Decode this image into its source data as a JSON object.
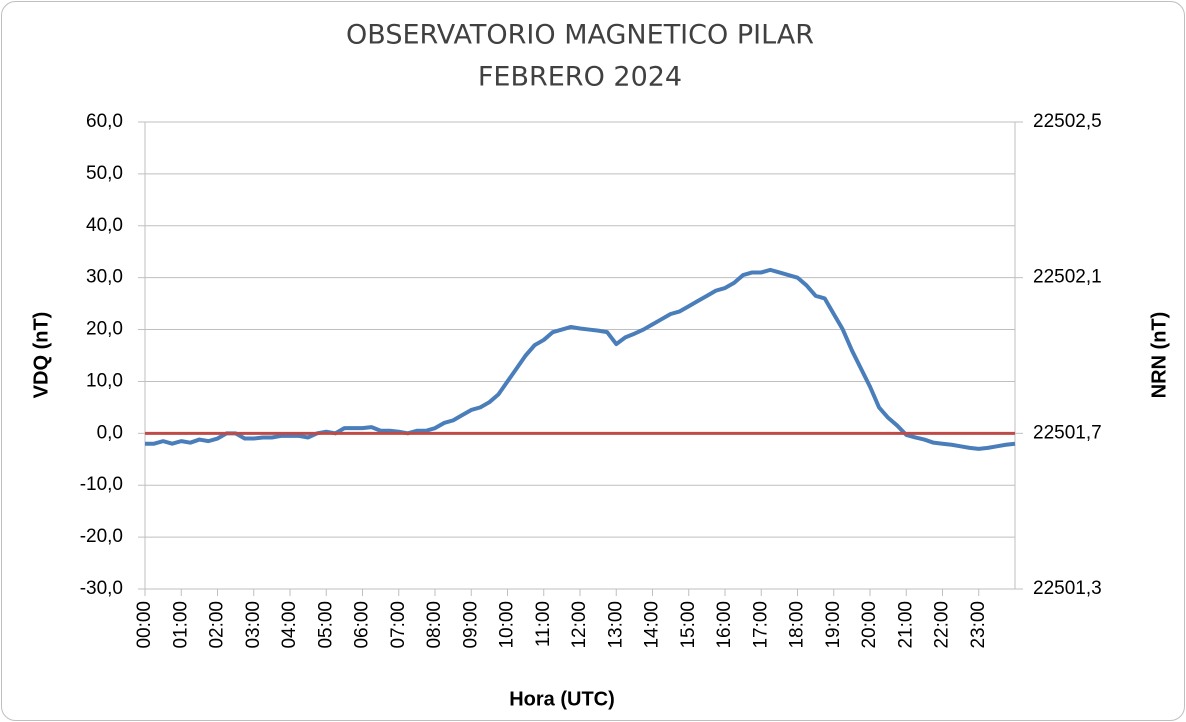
{
  "chart_data": {
    "type": "line",
    "title": "OBSERVATORIO MAGNETICO PILAR",
    "subtitle": "FEBRERO  2024",
    "xlabel": "Hora (UTC)",
    "ylabel": "VDQ (nT)",
    "y2label": "NRN (nT)",
    "x": [
      0,
      0.25,
      0.5,
      0.75,
      1,
      1.25,
      1.5,
      1.75,
      2,
      2.25,
      2.5,
      2.75,
      3,
      3.25,
      3.5,
      3.75,
      4,
      4.25,
      4.5,
      4.75,
      5,
      5.25,
      5.5,
      5.75,
      6,
      6.25,
      6.5,
      6.75,
      7,
      7.25,
      7.5,
      7.75,
      8,
      8.25,
      8.5,
      8.75,
      9,
      9.25,
      9.5,
      9.75,
      10,
      10.25,
      10.5,
      10.75,
      11,
      11.25,
      11.5,
      11.75,
      12,
      12.25,
      12.5,
      12.75,
      13,
      13.25,
      13.5,
      13.75,
      14,
      14.25,
      14.5,
      14.75,
      15,
      15.25,
      15.5,
      15.75,
      16,
      16.25,
      16.5,
      16.75,
      17,
      17.25,
      17.5,
      17.75,
      18,
      18.25,
      18.5,
      18.75,
      19,
      19.25,
      19.5,
      19.75,
      20,
      20.25,
      20.5,
      20.75,
      21,
      21.25,
      21.5,
      21.75,
      22,
      22.25,
      22.5,
      22.75,
      23,
      23.25,
      23.5,
      23.75,
      24
    ],
    "series": [
      {
        "color": "#4a7ebb",
        "values": [
          -2,
          -2,
          -1.5,
          -2,
          -1.5,
          -1.8,
          -1.2,
          -1.5,
          -1,
          0,
          0,
          -1,
          -1,
          -0.8,
          -0.8,
          -0.5,
          -0.5,
          -0.5,
          -0.8,
          0,
          0.3,
          0,
          1,
          1,
          1,
          1.2,
          0.5,
          0.5,
          0.3,
          0,
          0.5,
          0.5,
          1,
          2,
          2.5,
          3.5,
          4.5,
          5,
          6,
          7.5,
          10,
          12.5,
          15,
          17,
          18,
          19.5,
          20,
          20.5,
          20.2,
          20,
          19.8,
          19.5,
          17.2,
          18.5,
          19.2,
          20,
          21,
          22,
          23,
          23.5,
          24.5,
          25.5,
          26.5,
          27.5,
          28,
          29,
          30.5,
          31,
          31,
          31.5,
          31,
          30.5,
          30,
          28.5,
          26.5,
          26,
          23,
          20,
          16,
          12.5,
          9,
          5,
          3,
          1.5,
          -0.3,
          -0.8,
          -1.2,
          -1.8,
          -2,
          -2.2,
          -2.5,
          -2.8,
          -3,
          -2.8,
          -2.5,
          -2.2,
          -2
        ]
      },
      {
        "color": "#be4b48",
        "axis": "y2",
        "x": [
          0,
          24
        ],
        "values": [
          22501.7,
          22501.7
        ]
      }
    ],
    "xlim": [
      0,
      24
    ],
    "xticks": [
      {
        "value": 0,
        "label": "00:00"
      },
      {
        "value": 1,
        "label": "01:00"
      },
      {
        "value": 2,
        "label": "02:00"
      },
      {
        "value": 3,
        "label": "03:00"
      },
      {
        "value": 4,
        "label": "04:00"
      },
      {
        "value": 5,
        "label": "05:00"
      },
      {
        "value": 6,
        "label": "06:00"
      },
      {
        "value": 7,
        "label": "07:00"
      },
      {
        "value": 8,
        "label": "08:00"
      },
      {
        "value": 9,
        "label": "09:00"
      },
      {
        "value": 10,
        "label": "10:00"
      },
      {
        "value": 11,
        "label": "11:00"
      },
      {
        "value": 12,
        "label": "12:00"
      },
      {
        "value": 13,
        "label": "13:00"
      },
      {
        "value": 14,
        "label": "14:00"
      },
      {
        "value": 15,
        "label": "15:00"
      },
      {
        "value": 16,
        "label": "16:00"
      },
      {
        "value": 17,
        "label": "17:00"
      },
      {
        "value": 18,
        "label": "18:00"
      },
      {
        "value": 19,
        "label": "19:00"
      },
      {
        "value": 20,
        "label": "20:00"
      },
      {
        "value": 21,
        "label": "21:00"
      },
      {
        "value": 22,
        "label": "22:00"
      },
      {
        "value": 23,
        "label": "23:00"
      }
    ],
    "ylim": [
      -30,
      60
    ],
    "yticks": [
      {
        "value": -30,
        "label": "-30,0"
      },
      {
        "value": -20,
        "label": "-20,0"
      },
      {
        "value": -10,
        "label": "-10,0"
      },
      {
        "value": 0,
        "label": "0,0"
      },
      {
        "value": 10,
        "label": "10,0"
      },
      {
        "value": 20,
        "label": "20,0"
      },
      {
        "value": 30,
        "label": "30,0"
      },
      {
        "value": 40,
        "label": "40,0"
      },
      {
        "value": 50,
        "label": "50,0"
      },
      {
        "value": 60,
        "label": "60,0"
      }
    ],
    "y2lim": [
      22501.3,
      22502.5
    ],
    "y2ticks": [
      {
        "value": 22501.3,
        "label": "22501,3"
      },
      {
        "value": 22501.7,
        "label": "22501,7"
      },
      {
        "value": 22502.1,
        "label": "22502,1"
      },
      {
        "value": 22502.5,
        "label": "22502,5"
      }
    ],
    "grid": true
  }
}
